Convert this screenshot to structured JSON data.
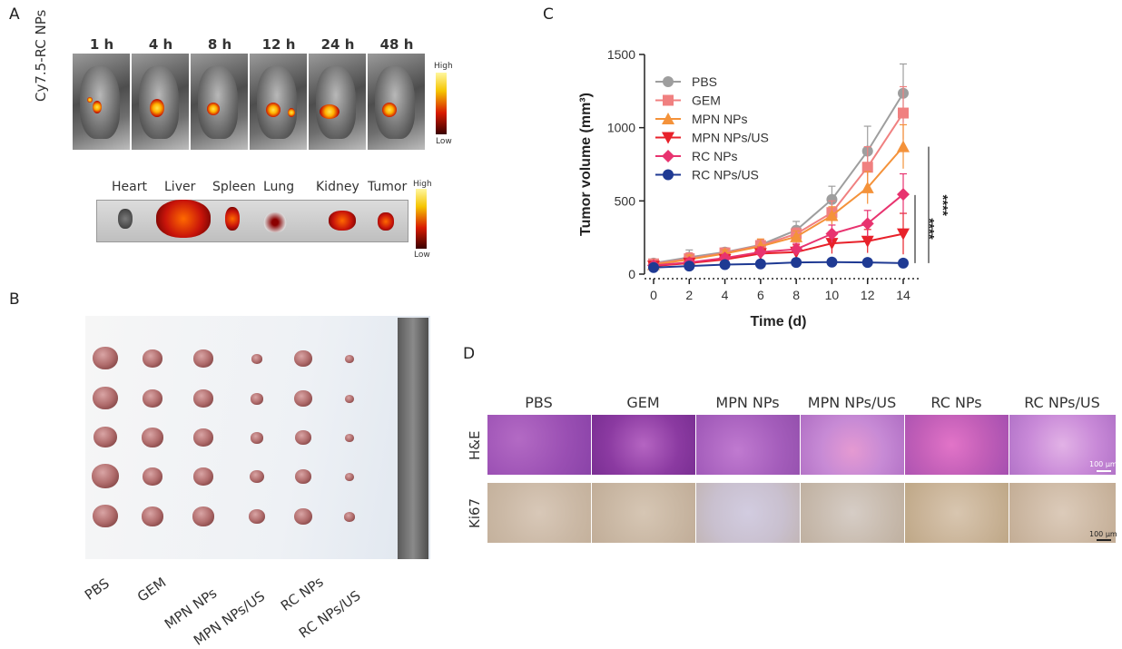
{
  "panel_a": {
    "letter": "A",
    "side_label": "Cy7.5-RC NPs",
    "timepoints": [
      "1 h",
      "4 h",
      "8 h",
      "12 h",
      "24 h",
      "48 h"
    ],
    "scale_high": "High",
    "scale_low": "Low",
    "organs": [
      "Heart",
      "Liver",
      "Spleen",
      "Lung",
      "Kidney",
      "Tumor"
    ],
    "organ_scale_high": "High",
    "organ_scale_low": "Low"
  },
  "panel_b": {
    "letter": "B",
    "groups": [
      "PBS",
      "GEM",
      "MPN NPs",
      "MPN NPs/US",
      "RC NPs",
      "RC NPs/US"
    ]
  },
  "panel_c": {
    "letter": "C",
    "significance": [
      "****",
      "****"
    ]
  },
  "panel_d": {
    "letter": "D",
    "columns": [
      "PBS",
      "GEM",
      "MPN NPs",
      "MPN NPs/US",
      "RC NPs",
      "RC NPs/US"
    ],
    "rows": [
      "H&E",
      "Ki67"
    ],
    "scalebar": "100 μm"
  },
  "chart_data": {
    "type": "line",
    "title": "",
    "xlabel": "Time (d)",
    "ylabel": "Tumor volume (mm³)",
    "x": [
      0,
      2,
      4,
      6,
      8,
      10,
      12,
      14
    ],
    "xlim": [
      0,
      14
    ],
    "ylim": [
      0,
      1500
    ],
    "xticks": [
      "0",
      "2",
      "4",
      "6",
      "8",
      "10",
      "12",
      "14"
    ],
    "yticks": [
      "0",
      "500",
      "1000",
      "1500"
    ],
    "legend_position": "top-left",
    "series": [
      {
        "name": "PBS",
        "color": "#9e9e9e",
        "marker": "circle",
        "values": [
          75,
          115,
          150,
          200,
          300,
          510,
          840,
          1235
        ],
        "errors": [
          15,
          50,
          30,
          30,
          60,
          90,
          170,
          200
        ]
      },
      {
        "name": "GEM",
        "color": "#f08080",
        "marker": "square",
        "values": [
          70,
          105,
          145,
          195,
          275,
          420,
          730,
          1100
        ],
        "errors": [
          15,
          40,
          30,
          40,
          40,
          80,
          140,
          180
        ]
      },
      {
        "name": "MPN NPs",
        "color": "#f4923a",
        "marker": "triangle-up",
        "values": [
          65,
          100,
          140,
          190,
          255,
          400,
          590,
          870
        ],
        "errors": [
          15,
          30,
          25,
          50,
          40,
          60,
          110,
          150
        ]
      },
      {
        "name": "MPN NPs/US",
        "color": "#e8212a",
        "marker": "triangle-down",
        "values": [
          55,
          75,
          100,
          140,
          150,
          210,
          225,
          275
        ],
        "errors": [
          10,
          20,
          20,
          30,
          50,
          70,
          80,
          140
        ]
      },
      {
        "name": "RC NPs",
        "color": "#e8336f",
        "marker": "diamond",
        "values": [
          60,
          80,
          110,
          150,
          170,
          275,
          345,
          545
        ],
        "errors": [
          10,
          25,
          25,
          35,
          40,
          60,
          90,
          140
        ]
      },
      {
        "name": "RC NPs/US",
        "color": "#1f3a93",
        "marker": "circle",
        "values": [
          45,
          55,
          65,
          70,
          80,
          82,
          80,
          75
        ],
        "errors": [
          5,
          10,
          10,
          10,
          15,
          15,
          15,
          15
        ]
      }
    ]
  }
}
